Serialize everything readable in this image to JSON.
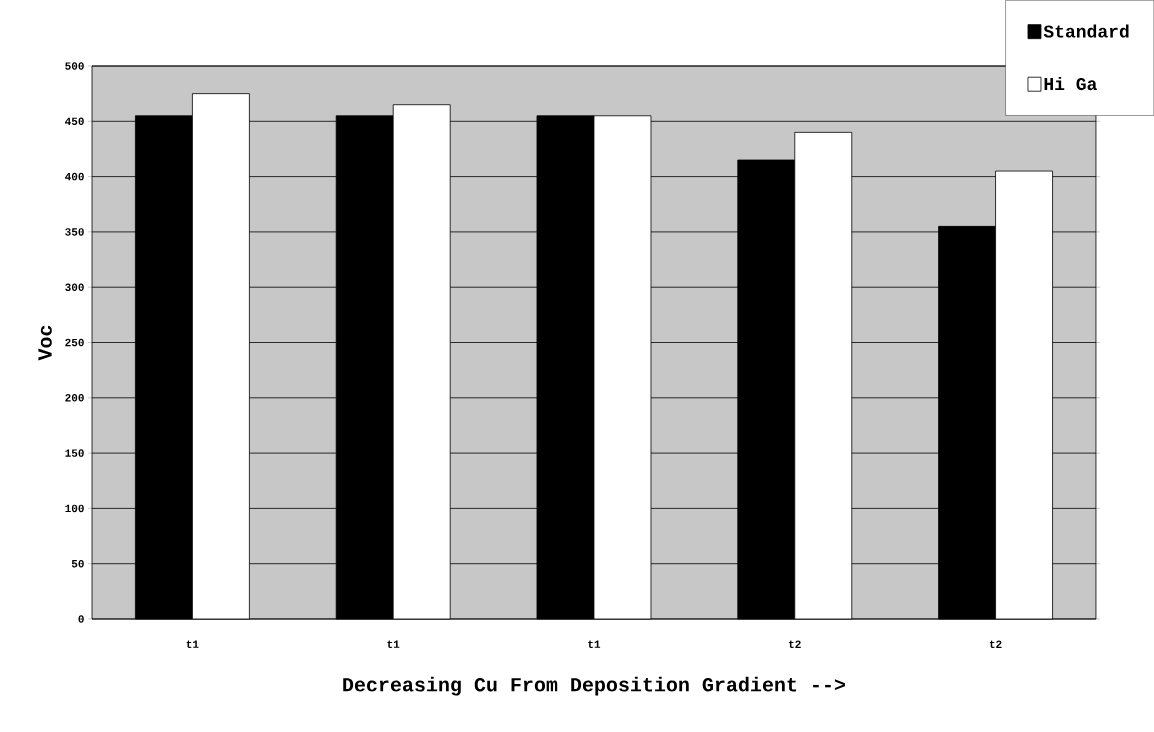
{
  "chart_data": {
    "type": "bar",
    "xlabel": "Decreasing Cu From Deposition Gradient -->",
    "ylabel": "Voc",
    "categories": [
      "t1",
      "t1",
      "t1",
      "t2",
      "t2"
    ],
    "series": [
      {
        "name": "Standard",
        "color": "#000000",
        "values": [
          455,
          455,
          455,
          415,
          355
        ]
      },
      {
        "name": "Hi Ga",
        "color": "#ffffff",
        "values": [
          475,
          465,
          455,
          440,
          405
        ]
      }
    ],
    "ylim": [
      0,
      500
    ],
    "yticks": [
      0,
      50,
      100,
      150,
      200,
      250,
      300,
      350,
      400,
      450,
      500
    ],
    "grid": "y",
    "legend": "top right"
  }
}
